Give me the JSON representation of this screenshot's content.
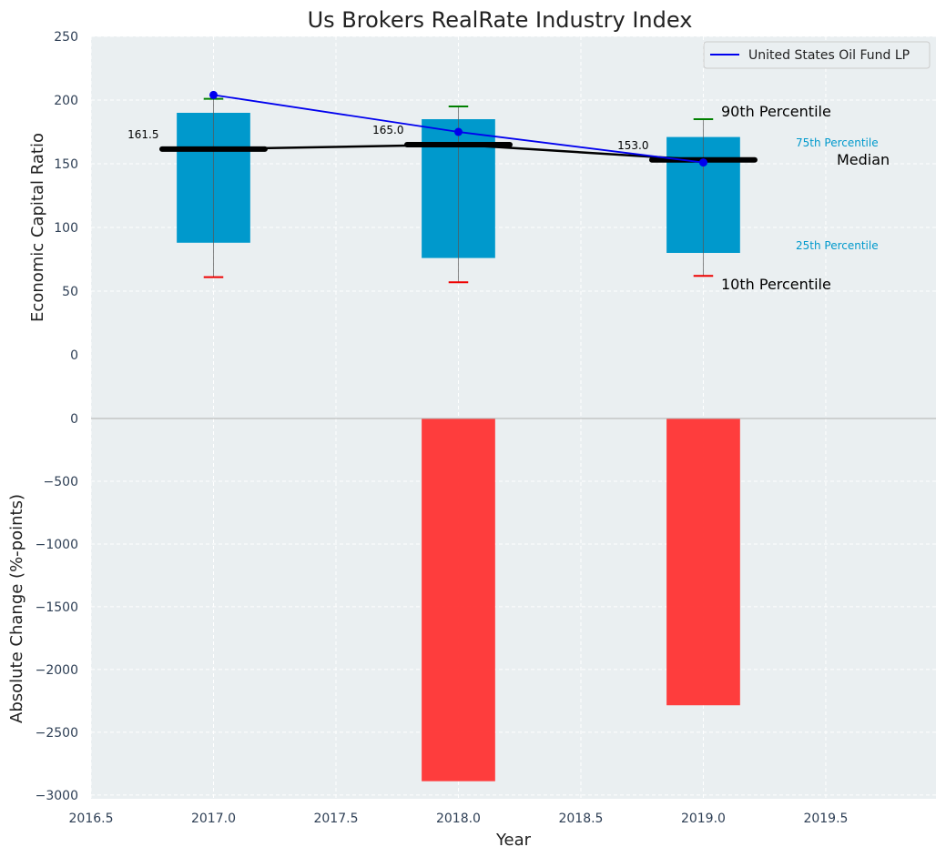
{
  "chart_data": [
    {
      "type": "box",
      "title": "Us Brokers RealRate Industry Index",
      "ylabel": "Economic Capital Ratio",
      "xlabel": "",
      "xlim": [
        2016.5,
        2019.95
      ],
      "ylim": [
        -50,
        250
      ],
      "xticks": [
        "2016.5",
        "2017.0",
        "2017.5",
        "2018.0",
        "2018.5",
        "2019.0",
        "2019.5"
      ],
      "xtick_values": [
        2016.5,
        2017.0,
        2017.5,
        2018.0,
        2018.5,
        2019.0,
        2019.5
      ],
      "yticks": [
        "0",
        "50",
        "100",
        "150",
        "200",
        "250"
      ],
      "ytick_values": [
        0,
        50,
        100,
        150,
        200,
        250
      ],
      "grid": true,
      "box_color": "#0099cc",
      "boxes": [
        {
          "x": 2017.0,
          "p10": 61,
          "p25": 88,
          "median": 161.5,
          "p75": 190,
          "p90": 201,
          "median_label": "161.5"
        },
        {
          "x": 2018.0,
          "p10": 57,
          "p25": 76,
          "median": 165.0,
          "p75": 185,
          "p90": 195,
          "median_label": "165.0"
        },
        {
          "x": 2019.0,
          "p10": 62,
          "p25": 80,
          "median": 153.0,
          "p75": 171,
          "p90": 185,
          "median_label": "153.0"
        }
      ],
      "series": [
        {
          "name": "United States Oil Fund LP",
          "color": "#0000ee",
          "x": [
            2017.0,
            2018.0,
            2019.0
          ],
          "values": [
            204,
            175,
            151
          ]
        }
      ],
      "median_line": {
        "x": [
          2017.0,
          2018.0,
          2019.0
        ],
        "values": [
          161.5,
          165.0,
          153.0
        ]
      },
      "legend": "top-right",
      "annotations": {
        "p90": "90th Percentile",
        "p75": "75th Percentile",
        "median": "Median",
        "p25": "25th Percentile",
        "p10": "10th Percentile"
      }
    },
    {
      "type": "bar",
      "ylabel": "Absolute Change (%-points)",
      "xlabel": "Year",
      "xlim": [
        2016.5,
        2019.95
      ],
      "ylim": [
        -3030,
        0
      ],
      "xticks": [
        "2016.5",
        "2017.0",
        "2017.5",
        "2018.0",
        "2018.5",
        "2019.0",
        "2019.5"
      ],
      "xtick_values": [
        2016.5,
        2017.0,
        2017.5,
        2018.0,
        2018.5,
        2019.0,
        2019.5
      ],
      "yticks": [
        "0",
        "−500",
        "−1000",
        "−1500",
        "−2000",
        "−2500",
        "−3000"
      ],
      "ytick_values": [
        0,
        -500,
        -1000,
        -1500,
        -2000,
        -2500,
        -3000
      ],
      "grid": true,
      "bar_color": "#ff3333",
      "x": [
        2018.0,
        2019.0
      ],
      "values": [
        -2890,
        -2285
      ]
    }
  ]
}
